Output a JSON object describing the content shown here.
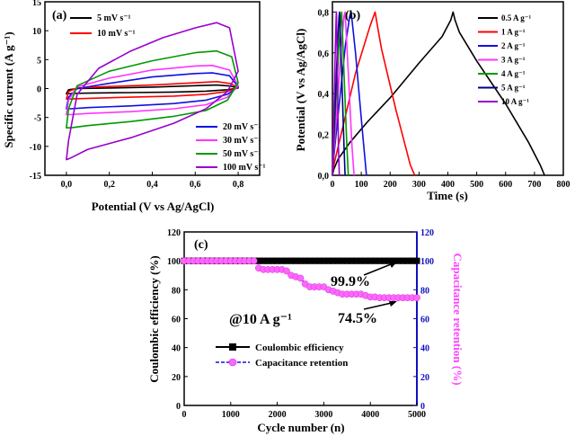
{
  "chart_data": [
    {
      "id": "a",
      "type": "line",
      "panel_label": "(a)",
      "xlabel": "Potential (V vs Ag/AgCl)",
      "ylabel": "Specific current  (A g⁻¹)",
      "xlim": [
        -0.1,
        0.9
      ],
      "ylim": [
        -15,
        15
      ],
      "xticks": [
        0.0,
        0.2,
        0.4,
        0.6,
        0.8
      ],
      "xtick_labels": [
        "0,0",
        "0,2",
        "0,4",
        "0,6",
        "0,8"
      ],
      "yticks": [
        -15,
        -10,
        -5,
        0,
        5,
        10,
        15
      ],
      "ytick_labels": [
        "-15",
        "-10",
        "-5",
        "0",
        "5",
        "10",
        "15"
      ],
      "legend_top": [
        "5 mV s⁻¹",
        "10 mV s⁻¹"
      ],
      "legend_bottom": [
        "20 mV s⁻¹",
        "30 mV s⁻¹",
        "50 mV s⁻¹",
        "100 mV s⁻¹"
      ],
      "series": [
        {
          "name": "5 mV s⁻¹",
          "color": "#000000",
          "upper_x": [
            0.0,
            0.01,
            0.05,
            0.2,
            0.4,
            0.6,
            0.7,
            0.76,
            0.8
          ],
          "upper_y": [
            -0.9,
            -0.2,
            0.0,
            0.1,
            0.25,
            0.5,
            0.6,
            0.45,
            0.1
          ],
          "lower_x": [
            0.8,
            0.75,
            0.65,
            0.5,
            0.3,
            0.1,
            0.02,
            0.0
          ],
          "lower_y": [
            0.1,
            -0.2,
            -0.45,
            -0.6,
            -0.7,
            -0.8,
            -0.85,
            -0.9
          ]
        },
        {
          "name": "10 mV s⁻¹",
          "color": "#ff0000",
          "upper_x": [
            0.0,
            0.01,
            0.05,
            0.2,
            0.4,
            0.6,
            0.7,
            0.76,
            0.8
          ],
          "upper_y": [
            -1.8,
            -0.5,
            0.1,
            0.35,
            0.6,
            1.0,
            1.2,
            0.9,
            0.2
          ],
          "lower_x": [
            0.8,
            0.75,
            0.65,
            0.5,
            0.3,
            0.1,
            0.02,
            0.0
          ],
          "lower_y": [
            0.2,
            -0.5,
            -1.0,
            -1.3,
            -1.5,
            -1.7,
            -1.8,
            -1.8
          ]
        },
        {
          "name": "20 mV s⁻¹",
          "color": "#1010e0",
          "upper_x": [
            0.0,
            0.01,
            0.05,
            0.2,
            0.4,
            0.6,
            0.68,
            0.76,
            0.8
          ],
          "upper_y": [
            -3.5,
            -1.5,
            0.0,
            0.9,
            2.0,
            2.6,
            2.7,
            2.2,
            0.3
          ],
          "lower_x": [
            0.8,
            0.75,
            0.65,
            0.5,
            0.3,
            0.1,
            0.02,
            0.0
          ],
          "lower_y": [
            0.3,
            -1.0,
            -2.0,
            -2.6,
            -3.0,
            -3.3,
            -3.5,
            -3.5
          ]
        },
        {
          "name": "30 mV s⁻¹",
          "color": "#ff33ff",
          "upper_x": [
            0.0,
            0.01,
            0.05,
            0.2,
            0.4,
            0.6,
            0.68,
            0.76,
            0.8
          ],
          "upper_y": [
            -4.5,
            -2.0,
            0.3,
            1.8,
            3.2,
            3.9,
            4.0,
            3.2,
            0.5
          ],
          "lower_x": [
            0.8,
            0.75,
            0.65,
            0.5,
            0.3,
            0.1,
            0.02,
            0.0
          ],
          "lower_y": [
            0.5,
            -1.5,
            -2.8,
            -3.5,
            -4.0,
            -4.3,
            -4.5,
            -4.5
          ]
        },
        {
          "name": "50 mV s⁻¹",
          "color": "#009900",
          "upper_x": [
            0.0,
            0.01,
            0.05,
            0.2,
            0.4,
            0.6,
            0.7,
            0.77,
            0.8
          ],
          "upper_y": [
            -6.8,
            -3.5,
            0.5,
            3.0,
            4.8,
            6.2,
            6.5,
            5.5,
            1.0
          ],
          "lower_x": [
            0.8,
            0.75,
            0.65,
            0.5,
            0.3,
            0.1,
            0.02,
            0.0
          ],
          "lower_y": [
            1.0,
            -2.0,
            -3.8,
            -4.8,
            -5.7,
            -6.4,
            -6.8,
            -6.8
          ]
        },
        {
          "name": "100 mV s⁻¹",
          "color": "#9900cc",
          "upper_x": [
            0.0,
            0.01,
            0.05,
            0.15,
            0.3,
            0.45,
            0.6,
            0.7,
            0.76,
            0.8
          ],
          "upper_y": [
            -12.3,
            -9.0,
            -1.0,
            3.5,
            6.5,
            8.8,
            10.5,
            11.4,
            10.5,
            3.0
          ],
          "lower_x": [
            0.8,
            0.75,
            0.65,
            0.5,
            0.3,
            0.1,
            0.02,
            0.0
          ],
          "lower_y": [
            3.0,
            -0.5,
            -3.5,
            -6.0,
            -8.5,
            -10.5,
            -12.0,
            -12.3
          ]
        }
      ]
    },
    {
      "id": "b",
      "type": "line",
      "panel_label": "(b)",
      "xlabel": "Time (s)",
      "ylabel": "Potential (V vs Ag/AgCl)",
      "xlim": [
        0,
        800
      ],
      "ylim": [
        0,
        0.85
      ],
      "xticks": [
        0,
        100,
        200,
        300,
        400,
        500,
        600,
        700,
        800
      ],
      "xtick_labels": [
        "0",
        "100",
        "200",
        "300",
        "400",
        "500",
        "600",
        "700",
        "800"
      ],
      "yticks": [
        0.0,
        0.2,
        0.4,
        0.6,
        0.8
      ],
      "ytick_labels": [
        "0,0",
        "0,2",
        "0,4",
        "0,6",
        "0,8"
      ],
      "series": [
        {
          "name": "0.5 A g⁻¹",
          "color": "#000000",
          "t": [
            0,
            5,
            20,
            60,
            120,
            200,
            300,
            380,
            410,
            418,
            425,
            440,
            500,
            600,
            680,
            720,
            735
          ],
          "v": [
            0.0,
            0.03,
            0.08,
            0.16,
            0.26,
            0.38,
            0.55,
            0.68,
            0.76,
            0.8,
            0.76,
            0.7,
            0.56,
            0.35,
            0.16,
            0.05,
            0.0
          ]
        },
        {
          "name": "1 A g⁻¹",
          "color": "#ff0000",
          "t": [
            0,
            3,
            30,
            80,
            130,
            148,
            155,
            170,
            220,
            270,
            285
          ],
          "v": [
            0.0,
            0.04,
            0.2,
            0.5,
            0.73,
            0.8,
            0.74,
            0.62,
            0.32,
            0.05,
            0.0
          ]
        },
        {
          "name": "2 A g⁻¹",
          "color": "#1010e0",
          "t": [
            0,
            2,
            20,
            45,
            60,
            65,
            80,
            105,
            118
          ],
          "v": [
            0.0,
            0.05,
            0.3,
            0.64,
            0.78,
            0.8,
            0.6,
            0.2,
            0.0
          ]
        },
        {
          "name": "3 A g⁻¹",
          "color": "#ff33ff",
          "t": [
            0,
            1,
            15,
            30,
            40,
            44,
            55,
            68,
            75
          ],
          "v": [
            0.0,
            0.05,
            0.3,
            0.62,
            0.78,
            0.8,
            0.5,
            0.14,
            0.0
          ]
        },
        {
          "name": "4 A g⁻¹",
          "color": "#009900",
          "t": [
            0,
            1,
            10,
            22,
            30,
            32,
            40,
            50,
            55
          ],
          "v": [
            0.0,
            0.05,
            0.3,
            0.62,
            0.78,
            0.8,
            0.5,
            0.14,
            0.0
          ]
        },
        {
          "name": "5 A g⁻¹",
          "color": "#000080",
          "t": [
            0,
            1,
            8,
            17,
            23,
            25,
            32,
            40,
            44
          ],
          "v": [
            0.0,
            0.05,
            0.3,
            0.62,
            0.78,
            0.8,
            0.5,
            0.14,
            0.0
          ]
        },
        {
          "name": "10 A g⁻¹",
          "color": "#9900cc",
          "t": [
            0,
            1,
            5,
            10,
            13,
            14,
            17,
            21,
            24
          ],
          "v": [
            0.0,
            0.05,
            0.3,
            0.62,
            0.78,
            0.8,
            0.5,
            0.14,
            0.0
          ]
        }
      ]
    },
    {
      "id": "c",
      "type": "line",
      "panel_label": "(c)",
      "xlabel": "Cycle number (n)",
      "ylabel_left": "Coulombic efficiency (%)",
      "ylabel_right": "Capacitance retention (%)",
      "xlim": [
        0,
        5000
      ],
      "ylim": [
        0,
        120
      ],
      "xticks": [
        0,
        1000,
        2000,
        3000,
        4000,
        5000
      ],
      "xtick_labels": [
        "0",
        "1000",
        "2000",
        "3000",
        "4000",
        "5000"
      ],
      "yticks": [
        0,
        20,
        40,
        60,
        80,
        100,
        120
      ],
      "ytick_labels": [
        "0",
        "20",
        "40",
        "60",
        "80",
        "100",
        "120"
      ],
      "annotation_condition": "@10 A g⁻¹",
      "annotation_coulombic": "99.9%",
      "annotation_retention": "74.5%",
      "series": [
        {
          "name": "Coulombic efficiency",
          "color": "#000000",
          "marker": "square",
          "x": [
            0,
            5000
          ],
          "y": [
            100,
            100
          ]
        },
        {
          "name": "Capacitance retention",
          "color": "#ff66ff",
          "marker": "circle",
          "line_color": "#1010e0",
          "x": [
            0,
            100,
            200,
            300,
            400,
            500,
            600,
            700,
            800,
            900,
            1000,
            1100,
            1200,
            1300,
            1400,
            1500,
            1600,
            1700,
            1800,
            1900,
            2000,
            2100,
            2200,
            2300,
            2400,
            2500,
            2600,
            2700,
            2800,
            2900,
            3000,
            3100,
            3200,
            3300,
            3400,
            3500,
            3600,
            3700,
            3800,
            3900,
            4000,
            4100,
            4200,
            4300,
            4400,
            4500,
            4600,
            4700,
            4800,
            4900,
            5000
          ],
          "y": [
            100,
            100,
            100,
            100,
            100,
            100,
            100,
            100,
            100,
            100,
            100,
            100,
            100,
            100,
            100,
            100,
            95,
            94,
            94,
            94,
            94,
            94,
            93,
            90,
            89,
            88,
            84,
            82,
            82,
            82,
            82,
            80,
            79,
            78,
            77,
            77,
            77,
            77,
            77,
            76,
            75,
            75,
            74.5,
            74.5,
            74.5,
            74.5,
            74.5,
            74.5,
            74.5,
            74.5,
            74.5
          ]
        }
      ]
    }
  ]
}
